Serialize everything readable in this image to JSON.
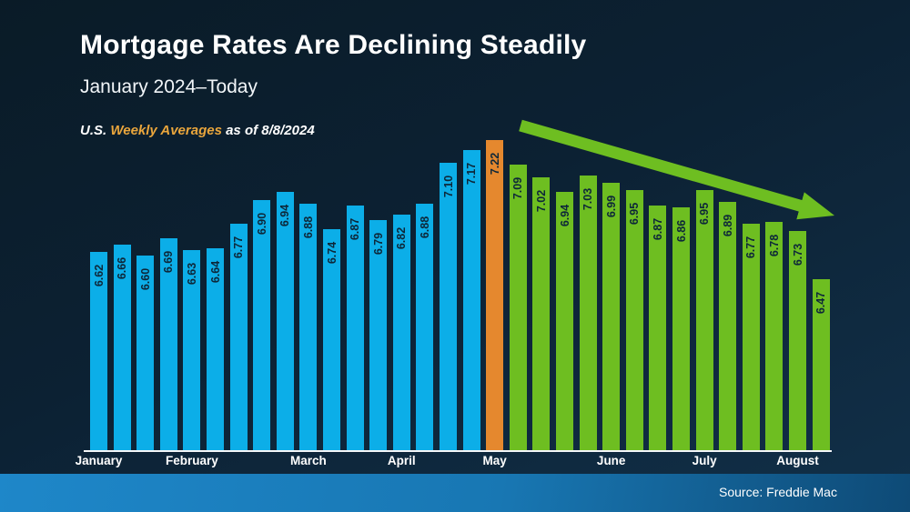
{
  "header": {
    "title": "Mortgage Rates Are Declining Steadily",
    "subtitle": "January 2024–Today",
    "note": {
      "prefix": "U.S. ",
      "highlight": "Weekly Averages",
      "suffix": " as of 8/8/2024"
    }
  },
  "footer": {
    "source": "Source: Freddie Mac"
  },
  "colors": {
    "blue": "#0caee8",
    "orange": "#e5882e",
    "green": "#6ebe21",
    "gold": "#eaa63c",
    "bar_label": "#0d2739",
    "strip_left": "#1e87c9",
    "strip_right": "#0e4a76"
  },
  "chart_data": {
    "type": "bar",
    "title": "Mortgage Rates Are Declining Steadily",
    "subtitle": "January 2024–Today",
    "note": "U.S. Weekly Averages as of 8/8/2024",
    "source": "Freddie Mac",
    "ylim": [
      5.55,
      7.4
    ],
    "grid": false,
    "legend": false,
    "categories": [
      "January",
      "February",
      "March",
      "April",
      "May",
      "June",
      "July",
      "August"
    ],
    "values": [
      6.62,
      6.66,
      6.6,
      6.69,
      6.63,
      6.64,
      6.77,
      6.9,
      6.94,
      6.88,
      6.74,
      6.87,
      6.79,
      6.82,
      6.88,
      7.1,
      7.17,
      7.22,
      7.09,
      7.02,
      6.94,
      7.03,
      6.99,
      6.95,
      6.87,
      6.86,
      6.95,
      6.89,
      6.77,
      6.78,
      6.73,
      6.47
    ],
    "month_ticks": [
      {
        "label": "January",
        "bar_index": 0
      },
      {
        "label": "February",
        "bar_index": 4
      },
      {
        "label": "March",
        "bar_index": 9
      },
      {
        "label": "April",
        "bar_index": 13
      },
      {
        "label": "May",
        "bar_index": 17
      },
      {
        "label": "June",
        "bar_index": 22
      },
      {
        "label": "July",
        "bar_index": 26
      },
      {
        "label": "August",
        "bar_index": 30
      }
    ],
    "color_groups": [
      {
        "color_key": "blue",
        "from": 0,
        "to": 16
      },
      {
        "color_key": "orange",
        "from": 17,
        "to": 17
      },
      {
        "color_key": "green",
        "from": 18,
        "to": 31
      }
    ],
    "annotations": [
      {
        "type": "arrow",
        "color_key": "green",
        "direction": "down-right",
        "meaning": "declining trend"
      }
    ]
  }
}
